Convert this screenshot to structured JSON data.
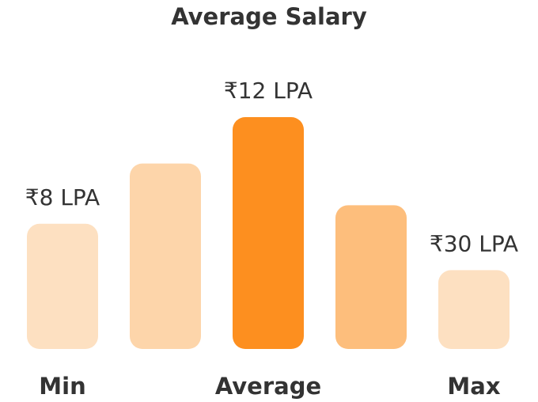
{
  "chart_data": {
    "type": "bar",
    "title": "Average Salary",
    "xlabel": "",
    "ylabel": "",
    "categories": [
      "Min",
      "",
      "Average",
      "",
      "Max"
    ],
    "value_labels": [
      "₹8 LPA",
      "",
      "₹12 LPA",
      "",
      "₹30 LPA"
    ],
    "relative_heights": [
      0.54,
      0.8,
      1.0,
      0.62,
      0.34
    ],
    "colors": [
      "#fde0c1",
      "#fdd5aa",
      "#fd8f1f",
      "#fdbe7c",
      "#fde0c1"
    ],
    "grid": false,
    "legend": "none"
  }
}
